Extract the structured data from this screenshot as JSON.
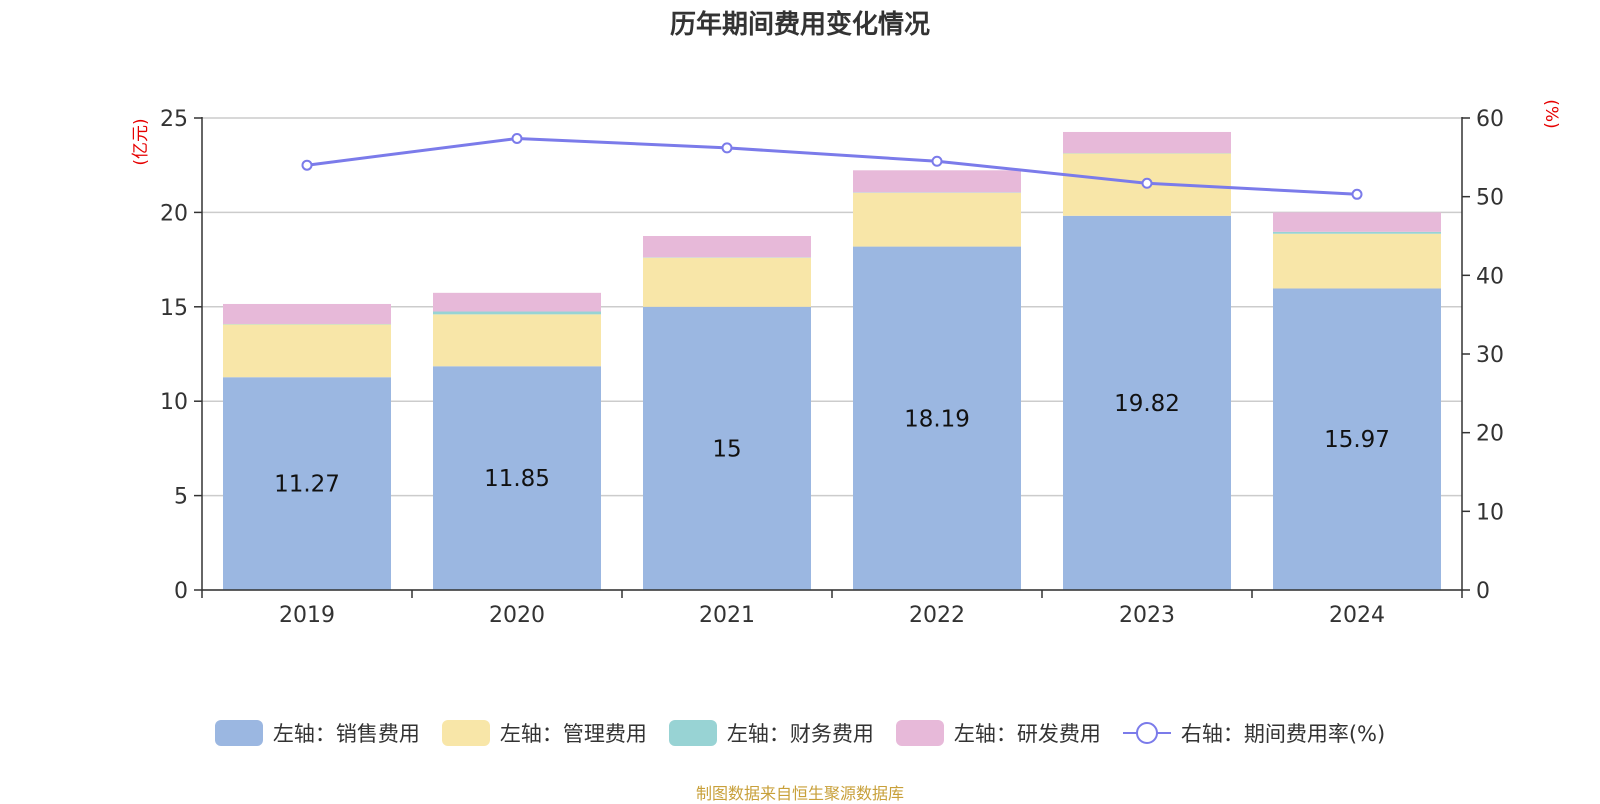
{
  "title": "历年期间费用变化情况",
  "footer": "制图数据来自恒生聚源数据库",
  "colors": {
    "sales": "#9bb7e1",
    "admin": "#f8e6a8",
    "finance": "#98d3d4",
    "rd": "#e7b9d9",
    "line": "#7b7bea",
    "axis_unit": "#e60000",
    "footer": "#c8a03a",
    "grid": "#cccccc",
    "axis": "#333333"
  },
  "legend": [
    {
      "label": "左轴：销售费用",
      "key": "sales"
    },
    {
      "label": "左轴：管理费用",
      "key": "admin"
    },
    {
      "label": "左轴：财务费用",
      "key": "finance"
    },
    {
      "label": "左轴：研发费用",
      "key": "rd"
    },
    {
      "label": "右轴：期间费用率(%)",
      "key": "line"
    }
  ],
  "chart_data": {
    "type": "bar",
    "stacked": true,
    "title": "历年期间费用变化情况",
    "categories": [
      "2019",
      "2020",
      "2021",
      "2022",
      "2023",
      "2024"
    ],
    "series": [
      {
        "name": "左轴：销售费用",
        "key": "sales",
        "axis": "left",
        "values": [
          11.27,
          11.85,
          15,
          18.19,
          19.82,
          15.97
        ],
        "labels": [
          "11.27",
          "11.85",
          "15",
          "18.19",
          "19.82",
          "15.97"
        ]
      },
      {
        "name": "左轴：管理费用",
        "key": "admin",
        "axis": "left",
        "values": [
          2.8,
          2.75,
          2.6,
          2.85,
          3.3,
          2.9
        ]
      },
      {
        "name": "左轴：财务费用",
        "key": "finance",
        "axis": "left",
        "values": [
          0.02,
          0.15,
          0.02,
          0.02,
          0.02,
          0.1
        ]
      },
      {
        "name": "左轴：研发费用",
        "key": "rd",
        "axis": "left",
        "values": [
          1.06,
          0.99,
          1.13,
          1.17,
          1.12,
          1.03
        ]
      },
      {
        "name": "右轴：期间费用率(%)",
        "key": "line",
        "axis": "right",
        "type": "line",
        "values": [
          54,
          57.4,
          56.2,
          54.5,
          51.7,
          50.3
        ]
      }
    ],
    "left_axis": {
      "unit": "(亿元)",
      "min": 0,
      "max": 25,
      "ticks": [
        0,
        5,
        10,
        15,
        20,
        25
      ]
    },
    "right_axis": {
      "unit": "(%)",
      "min": 0,
      "max": 60,
      "ticks": [
        0,
        10,
        20,
        30,
        40,
        50,
        60
      ]
    },
    "grid": true,
    "legend_position": "bottom"
  }
}
